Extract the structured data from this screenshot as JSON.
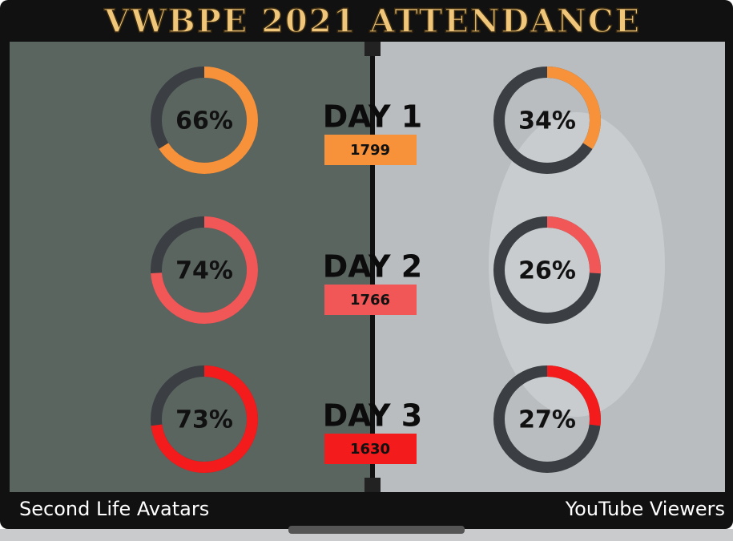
{
  "chart_data": {
    "type": "donut-grid",
    "title": "VWBPE 2021 ATTENDANCE",
    "days": [
      "DAY 1",
      "DAY 2",
      "DAY 3"
    ],
    "totals": [
      1799,
      1766,
      1630
    ],
    "colors": [
      "#f7923a",
      "#f25757",
      "#f31b1b"
    ],
    "track_color": "#3b3e42",
    "series": [
      {
        "name": "Second Life Avatars",
        "values": [
          66,
          74,
          73
        ],
        "value_labels": [
          "66%",
          "74%",
          "73%"
        ]
      },
      {
        "name": "YouTube Viewers",
        "values": [
          34,
          26,
          27
        ],
        "value_labels": [
          "34%",
          "26%",
          "27%"
        ]
      }
    ]
  }
}
